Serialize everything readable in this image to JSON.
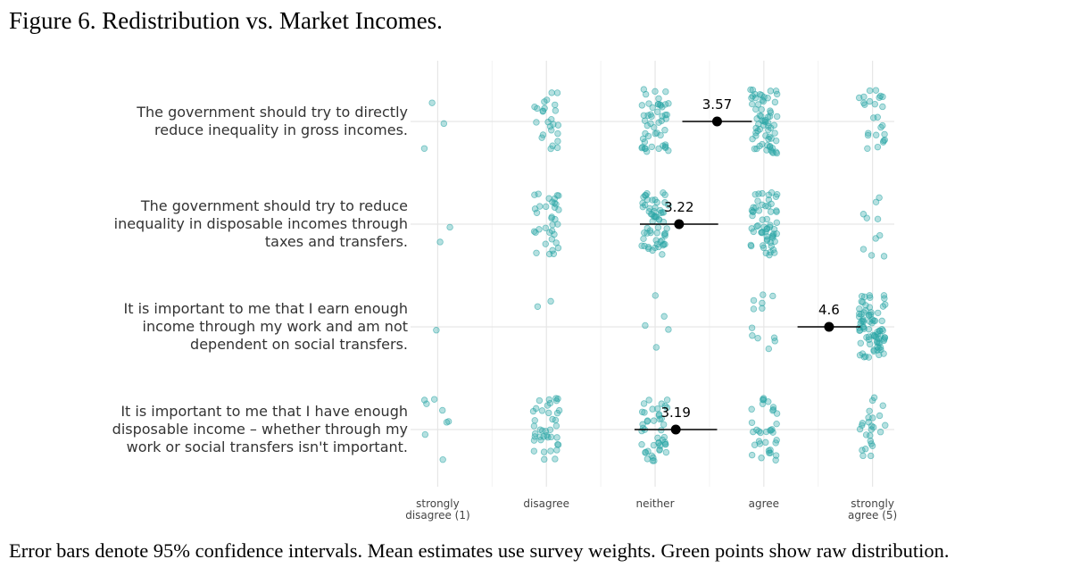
{
  "chart_data": {
    "type": "dotplot",
    "title": "Figure 6. Redistribution vs. Market Incomes.",
    "caption": "Error bars denote 95% confidence intervals. Mean estimates use survey weights. Green points show raw distribution.",
    "categories": [
      "The government should try to directly reduce inequality in gross incomes.",
      "The government should try to reduce inequality in disposable incomes through taxes and transfers.",
      "It is important to me that I earn enough income through my work and am not dependent on social transfers.",
      "It is important to me that I have enough disposable income – whether through my work or social transfers isn't important."
    ],
    "xlim": [
      0.75,
      5.2
    ],
    "xticks": [
      {
        "value": 1,
        "label": "strongly disagree (1)"
      },
      {
        "value": 2,
        "label": "disagree"
      },
      {
        "value": 3,
        "label": "neither"
      },
      {
        "value": 4,
        "label": "agree"
      },
      {
        "value": 5,
        "label": "strongly agree (5)"
      }
    ],
    "grid": true,
    "means": {
      "color": "#000000",
      "values": [
        3.57,
        3.22,
        4.6,
        3.19
      ],
      "errors": [
        0.32,
        0.36,
        0.29,
        0.38
      ]
    },
    "distribution": {
      "color": "#2aa5a5",
      "counts": [
        [
          3,
          25,
          50,
          65,
          25
        ],
        [
          2,
          35,
          60,
          60,
          10
        ],
        [
          1,
          2,
          5,
          12,
          80
        ],
        [
          8,
          40,
          45,
          35,
          25
        ]
      ]
    }
  }
}
